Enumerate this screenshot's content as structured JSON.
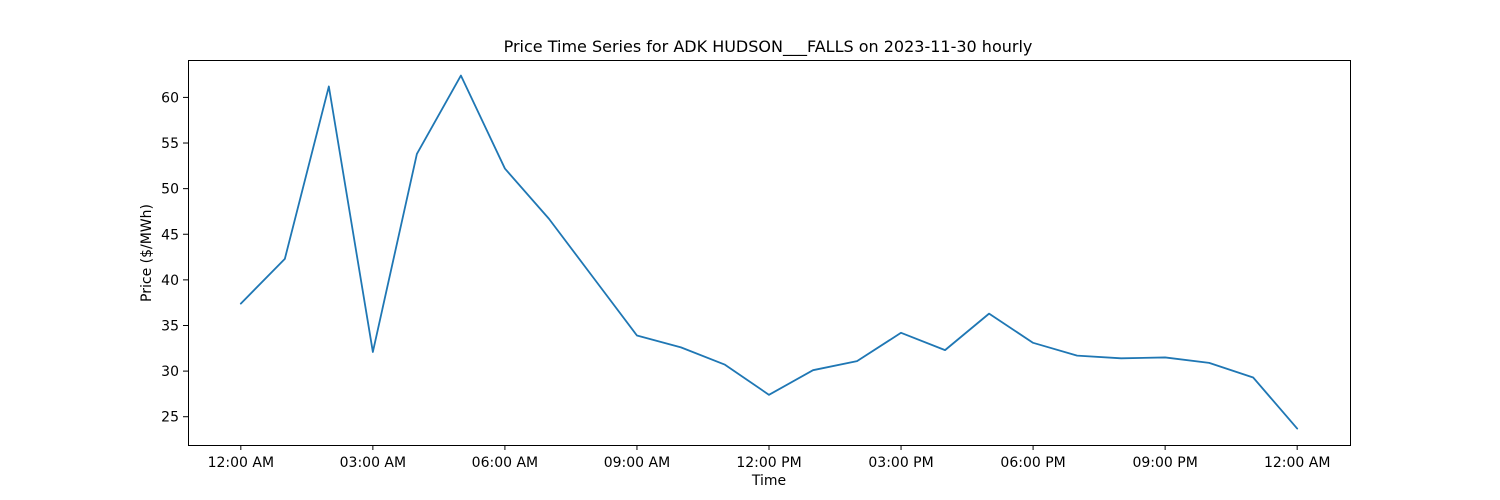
{
  "chart_data": {
    "type": "line",
    "title": "Price Time Series for ADK HUDSON___FALLS on 2023-11-30 hourly",
    "xlabel": "Time",
    "ylabel": "Price ($/MWh)",
    "x": [
      "00:00",
      "01:00",
      "02:00",
      "03:00",
      "04:00",
      "05:00",
      "06:00",
      "07:00",
      "08:00",
      "09:00",
      "10:00",
      "11:00",
      "12:00",
      "13:00",
      "14:00",
      "15:00",
      "16:00",
      "17:00",
      "18:00",
      "19:00",
      "20:00",
      "21:00",
      "22:00",
      "23:00",
      "24:00"
    ],
    "x_ticks": [
      {
        "hour": 0,
        "label": "12:00 AM"
      },
      {
        "hour": 3,
        "label": "03:00 AM"
      },
      {
        "hour": 6,
        "label": "06:00 AM"
      },
      {
        "hour": 9,
        "label": "09:00 AM"
      },
      {
        "hour": 12,
        "label": "12:00 PM"
      },
      {
        "hour": 15,
        "label": "03:00 PM"
      },
      {
        "hour": 18,
        "label": "06:00 PM"
      },
      {
        "hour": 21,
        "label": "09:00 PM"
      },
      {
        "hour": 24,
        "label": "12:00 AM"
      }
    ],
    "y_ticks": [
      25,
      30,
      35,
      40,
      45,
      50,
      55,
      60
    ],
    "xlim": [
      -1.2,
      25.2
    ],
    "ylim": [
      21.9,
      64.1
    ],
    "grid": false,
    "series": [
      {
        "color": "#1f77b4",
        "values": [
          37.4,
          42.3,
          61.2,
          32.1,
          53.8,
          62.4,
          52.2,
          46.7,
          40.3,
          33.9,
          32.6,
          30.7,
          27.4,
          30.1,
          31.1,
          34.2,
          32.3,
          36.3,
          33.1,
          31.7,
          31.4,
          31.5,
          30.9,
          29.3,
          23.7
        ]
      }
    ]
  }
}
